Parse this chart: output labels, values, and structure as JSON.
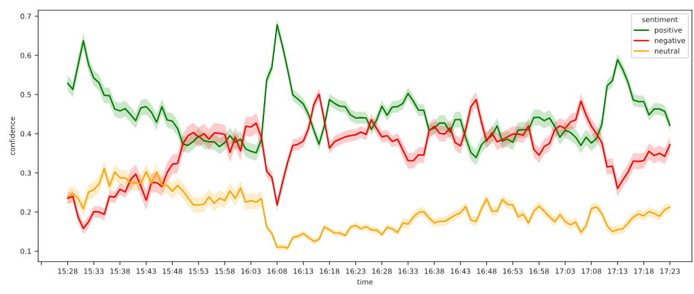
{
  "chart_data": {
    "type": "line",
    "xlabel": "time",
    "ylabel": "confidence",
    "legend_title": "sentiment",
    "legend": "top right",
    "grid": false,
    "xlim": [
      15.373,
      17.4533
    ],
    "ylim": [
      0.0732,
      0.715
    ],
    "xticks": [
      {
        "value": 15.3833,
        "label": null
      },
      {
        "value": 15.4667,
        "label": "15:28"
      },
      {
        "value": 15.55,
        "label": "15:33"
      },
      {
        "value": 15.6333,
        "label": "15:38"
      },
      {
        "value": 15.7167,
        "label": "15:43"
      },
      {
        "value": 15.8,
        "label": "15:48"
      },
      {
        "value": 15.8833,
        "label": "15:53"
      },
      {
        "value": 15.9667,
        "label": "15:58"
      },
      {
        "value": 16.05,
        "label": "16:03"
      },
      {
        "value": 16.1333,
        "label": "16:08"
      },
      {
        "value": 16.2167,
        "label": "16:13"
      },
      {
        "value": 16.3,
        "label": "16:18"
      },
      {
        "value": 16.3833,
        "label": "16:23"
      },
      {
        "value": 16.4667,
        "label": "16:28"
      },
      {
        "value": 16.55,
        "label": "16:33"
      },
      {
        "value": 16.6333,
        "label": "16:38"
      },
      {
        "value": 16.7167,
        "label": "16:43"
      },
      {
        "value": 16.8,
        "label": "16:48"
      },
      {
        "value": 16.8833,
        "label": "16:53"
      },
      {
        "value": 16.9667,
        "label": "16:58"
      },
      {
        "value": 17.05,
        "label": "17:03"
      },
      {
        "value": 17.1333,
        "label": "17:08"
      },
      {
        "value": 17.2167,
        "label": "17:13"
      },
      {
        "value": 17.3,
        "label": "17:18"
      },
      {
        "value": 17.3833,
        "label": "17:23"
      }
    ],
    "yticks": [
      0.1,
      0.2,
      0.3,
      0.4,
      0.5,
      0.6,
      0.7
    ],
    "x": [
      15.4667,
      15.4833,
      15.5,
      15.5167,
      15.5333,
      15.55,
      15.5667,
      15.5833,
      15.6,
      15.6167,
      15.6333,
      15.65,
      15.6667,
      15.6833,
      15.7,
      15.7167,
      15.7333,
      15.75,
      15.7667,
      15.7833,
      15.8,
      15.8167,
      15.8333,
      15.85,
      15.8667,
      15.8833,
      15.9,
      15.9167,
      15.9333,
      15.95,
      15.9667,
      15.9833,
      16.0,
      16.0167,
      16.0333,
      16.05,
      16.0667,
      16.0833,
      16.1,
      16.1167,
      16.1333,
      16.15,
      16.1667,
      16.1833,
      16.2,
      16.2167,
      16.2333,
      16.25,
      16.2667,
      16.2833,
      16.3,
      16.3167,
      16.3333,
      16.35,
      16.3667,
      16.3833,
      16.4,
      16.4167,
      16.4333,
      16.45,
      16.4667,
      16.4833,
      16.5,
      16.5167,
      16.5333,
      16.55,
      16.5667,
      16.5833,
      16.6,
      16.6167,
      16.6333,
      16.65,
      16.6667,
      16.6833,
      16.7,
      16.7167,
      16.7333,
      16.75,
      16.7667,
      16.7833,
      16.8,
      16.8167,
      16.8333,
      16.85,
      16.8667,
      16.8833,
      16.9,
      16.9167,
      16.9333,
      16.95,
      16.9667,
      16.9833,
      17.0,
      17.0167,
      17.0333,
      17.05,
      17.0667,
      17.0833,
      17.1,
      17.1167,
      17.1333,
      17.15,
      17.1667,
      17.1833,
      17.2,
      17.2167,
      17.2333,
      17.25,
      17.2667,
      17.2833,
      17.3,
      17.3167,
      17.3333,
      17.35,
      17.3667,
      17.3833
    ],
    "series": [
      {
        "name": "positive",
        "color": "#008000",
        "values": [
          0.529,
          0.513,
          0.575,
          0.637,
          0.577,
          0.542,
          0.53,
          0.498,
          0.497,
          0.463,
          0.458,
          0.464,
          0.449,
          0.433,
          0.466,
          0.469,
          0.455,
          0.429,
          0.469,
          0.435,
          0.432,
          0.413,
          0.374,
          0.37,
          0.38,
          0.394,
          0.382,
          0.379,
          0.379,
          0.367,
          0.377,
          0.395,
          0.378,
          0.386,
          0.361,
          0.355,
          0.351,
          0.385,
          0.537,
          0.569,
          0.678,
          0.625,
          0.564,
          0.499,
          0.488,
          0.476,
          0.449,
          0.409,
          0.373,
          0.419,
          0.487,
          0.477,
          0.47,
          0.469,
          0.448,
          0.44,
          0.441,
          0.44,
          0.411,
          0.435,
          0.47,
          0.447,
          0.468,
          0.469,
          0.477,
          0.503,
          0.483,
          0.46,
          0.46,
          0.409,
          0.414,
          0.427,
          0.427,
          0.404,
          0.436,
          0.436,
          0.39,
          0.352,
          0.339,
          0.371,
          0.385,
          0.395,
          0.42,
          0.381,
          0.386,
          0.378,
          0.409,
          0.41,
          0.41,
          0.441,
          0.442,
          0.433,
          0.44,
          0.419,
          0.391,
          0.409,
          0.403,
          0.391,
          0.37,
          0.391,
          0.376,
          0.388,
          0.424,
          0.522,
          0.535,
          0.589,
          0.564,
          0.531,
          0.486,
          0.482,
          0.482,
          0.448,
          0.463,
          0.463,
          0.457,
          0.421
        ],
        "lower": [
          0.509,
          0.493,
          0.555,
          0.617,
          0.557,
          0.522,
          0.51,
          0.478,
          0.477,
          0.443,
          0.438,
          0.444,
          0.429,
          0.413,
          0.446,
          0.449,
          0.435,
          0.409,
          0.449,
          0.415,
          0.412,
          0.393,
          0.354,
          0.35,
          0.36,
          0.374,
          0.362,
          0.359,
          0.359,
          0.347,
          0.357,
          0.375,
          0.358,
          0.366,
          0.341,
          0.335,
          0.331,
          0.365,
          0.522,
          0.554,
          0.663,
          0.61,
          0.549,
          0.484,
          0.473,
          0.461,
          0.434,
          0.394,
          0.358,
          0.404,
          0.472,
          0.462,
          0.455,
          0.454,
          0.433,
          0.425,
          0.426,
          0.425,
          0.396,
          0.42,
          0.455,
          0.432,
          0.453,
          0.454,
          0.462,
          0.488,
          0.468,
          0.445,
          0.445,
          0.394,
          0.399,
          0.407,
          0.407,
          0.384,
          0.416,
          0.416,
          0.37,
          0.332,
          0.319,
          0.351,
          0.365,
          0.375,
          0.4,
          0.361,
          0.366,
          0.358,
          0.389,
          0.39,
          0.39,
          0.421,
          0.422,
          0.413,
          0.42,
          0.399,
          0.371,
          0.389,
          0.383,
          0.371,
          0.35,
          0.371,
          0.356,
          0.368,
          0.404,
          0.507,
          0.52,
          0.574,
          0.549,
          0.516,
          0.471,
          0.467,
          0.467,
          0.433,
          0.448,
          0.448,
          0.442,
          0.406
        ],
        "upper": [
          0.549,
          0.533,
          0.595,
          0.657,
          0.597,
          0.562,
          0.55,
          0.518,
          0.517,
          0.483,
          0.478,
          0.484,
          0.469,
          0.453,
          0.486,
          0.489,
          0.475,
          0.449,
          0.489,
          0.455,
          0.452,
          0.433,
          0.394,
          0.39,
          0.4,
          0.414,
          0.402,
          0.399,
          0.399,
          0.387,
          0.397,
          0.415,
          0.398,
          0.406,
          0.381,
          0.375,
          0.371,
          0.405,
          0.552,
          0.584,
          0.693,
          0.64,
          0.579,
          0.514,
          0.503,
          0.491,
          0.464,
          0.424,
          0.388,
          0.434,
          0.502,
          0.492,
          0.485,
          0.484,
          0.463,
          0.455,
          0.456,
          0.455,
          0.426,
          0.45,
          0.485,
          0.462,
          0.483,
          0.484,
          0.492,
          0.518,
          0.498,
          0.475,
          0.475,
          0.424,
          0.429,
          0.447,
          0.447,
          0.424,
          0.456,
          0.456,
          0.41,
          0.372,
          0.359,
          0.391,
          0.405,
          0.415,
          0.44,
          0.401,
          0.406,
          0.398,
          0.429,
          0.43,
          0.43,
          0.461,
          0.462,
          0.453,
          0.46,
          0.439,
          0.411,
          0.429,
          0.423,
          0.411,
          0.39,
          0.411,
          0.396,
          0.408,
          0.444,
          0.537,
          0.55,
          0.604,
          0.579,
          0.546,
          0.501,
          0.497,
          0.497,
          0.463,
          0.478,
          0.478,
          0.472,
          0.436
        ]
      },
      {
        "name": "negative",
        "color": "#ff0000",
        "values": [
          0.235,
          0.24,
          0.187,
          0.158,
          0.175,
          0.201,
          0.2,
          0.194,
          0.24,
          0.238,
          0.258,
          0.251,
          0.282,
          0.297,
          0.265,
          0.23,
          0.275,
          0.275,
          0.265,
          0.301,
          0.322,
          0.324,
          0.374,
          0.395,
          0.403,
          0.391,
          0.4,
          0.386,
          0.402,
          0.401,
          0.398,
          0.352,
          0.391,
          0.356,
          0.419,
          0.417,
          0.427,
          0.39,
          0.304,
          0.288,
          0.218,
          0.274,
          0.327,
          0.37,
          0.373,
          0.381,
          0.413,
          0.474,
          0.501,
          0.435,
          0.363,
          0.38,
          0.386,
          0.392,
          0.395,
          0.397,
          0.404,
          0.398,
          0.436,
          0.413,
          0.392,
          0.395,
          0.38,
          0.386,
          0.358,
          0.331,
          0.331,
          0.346,
          0.345,
          0.407,
          0.419,
          0.401,
          0.399,
          0.415,
          0.377,
          0.369,
          0.41,
          0.469,
          0.487,
          0.43,
          0.381,
          0.402,
          0.379,
          0.385,
          0.392,
          0.399,
          0.399,
          0.396,
          0.42,
          0.36,
          0.345,
          0.367,
          0.375,
          0.41,
          0.42,
          0.413,
          0.43,
          0.435,
          0.483,
          0.447,
          0.419,
          0.399,
          0.377,
          0.315,
          0.317,
          0.26,
          0.282,
          0.302,
          0.33,
          0.329,
          0.331,
          0.355,
          0.344,
          0.35,
          0.342,
          0.372
        ],
        "lower": [
          0.22,
          0.225,
          0.172,
          0.143,
          0.16,
          0.186,
          0.185,
          0.179,
          0.225,
          0.223,
          0.243,
          0.236,
          0.257,
          0.272,
          0.24,
          0.205,
          0.25,
          0.25,
          0.24,
          0.276,
          0.297,
          0.299,
          0.349,
          0.37,
          0.378,
          0.366,
          0.375,
          0.361,
          0.377,
          0.376,
          0.373,
          0.327,
          0.366,
          0.331,
          0.394,
          0.392,
          0.402,
          0.365,
          0.289,
          0.273,
          0.203,
          0.259,
          0.312,
          0.355,
          0.358,
          0.366,
          0.398,
          0.459,
          0.486,
          0.42,
          0.348,
          0.365,
          0.371,
          0.377,
          0.38,
          0.382,
          0.389,
          0.383,
          0.421,
          0.398,
          0.377,
          0.38,
          0.365,
          0.371,
          0.338,
          0.311,
          0.311,
          0.326,
          0.325,
          0.387,
          0.399,
          0.381,
          0.379,
          0.395,
          0.357,
          0.349,
          0.39,
          0.449,
          0.467,
          0.41,
          0.361,
          0.382,
          0.359,
          0.365,
          0.372,
          0.379,
          0.379,
          0.376,
          0.4,
          0.34,
          0.325,
          0.347,
          0.355,
          0.39,
          0.4,
          0.393,
          0.41,
          0.415,
          0.463,
          0.427,
          0.399,
          0.379,
          0.357,
          0.295,
          0.297,
          0.24,
          0.262,
          0.282,
          0.31,
          0.309,
          0.311,
          0.335,
          0.324,
          0.33,
          0.322,
          0.352
        ],
        "upper": [
          0.25,
          0.255,
          0.202,
          0.173,
          0.19,
          0.216,
          0.215,
          0.209,
          0.255,
          0.253,
          0.273,
          0.266,
          0.307,
          0.322,
          0.29,
          0.255,
          0.3,
          0.3,
          0.29,
          0.326,
          0.347,
          0.349,
          0.399,
          0.42,
          0.428,
          0.416,
          0.425,
          0.411,
          0.427,
          0.426,
          0.423,
          0.377,
          0.416,
          0.381,
          0.444,
          0.442,
          0.452,
          0.415,
          0.319,
          0.303,
          0.233,
          0.289,
          0.342,
          0.385,
          0.388,
          0.396,
          0.428,
          0.489,
          0.516,
          0.45,
          0.378,
          0.395,
          0.401,
          0.407,
          0.41,
          0.412,
          0.419,
          0.413,
          0.451,
          0.428,
          0.407,
          0.41,
          0.395,
          0.401,
          0.378,
          0.351,
          0.351,
          0.366,
          0.365,
          0.427,
          0.439,
          0.421,
          0.419,
          0.435,
          0.397,
          0.389,
          0.43,
          0.489,
          0.507,
          0.45,
          0.401,
          0.422,
          0.399,
          0.405,
          0.412,
          0.419,
          0.419,
          0.416,
          0.44,
          0.38,
          0.365,
          0.387,
          0.395,
          0.43,
          0.44,
          0.433,
          0.45,
          0.455,
          0.503,
          0.467,
          0.439,
          0.419,
          0.397,
          0.335,
          0.337,
          0.28,
          0.302,
          0.322,
          0.35,
          0.349,
          0.351,
          0.375,
          0.364,
          0.37,
          0.362,
          0.392
        ]
      },
      {
        "name": "neutral",
        "color": "#ffa500",
        "values": [
          0.239,
          0.247,
          0.235,
          0.208,
          0.251,
          0.257,
          0.271,
          0.311,
          0.266,
          0.302,
          0.287,
          0.287,
          0.274,
          0.274,
          0.274,
          0.303,
          0.274,
          0.302,
          0.269,
          0.268,
          0.253,
          0.268,
          0.254,
          0.236,
          0.218,
          0.218,
          0.22,
          0.239,
          0.222,
          0.235,
          0.229,
          0.254,
          0.235,
          0.261,
          0.225,
          0.229,
          0.225,
          0.234,
          0.162,
          0.145,
          0.11,
          0.111,
          0.108,
          0.135,
          0.138,
          0.145,
          0.135,
          0.125,
          0.13,
          0.162,
          0.154,
          0.146,
          0.146,
          0.14,
          0.161,
          0.166,
          0.157,
          0.163,
          0.154,
          0.154,
          0.142,
          0.161,
          0.157,
          0.148,
          0.172,
          0.169,
          0.187,
          0.199,
          0.201,
          0.185,
          0.172,
          0.176,
          0.176,
          0.184,
          0.192,
          0.198,
          0.214,
          0.179,
          0.176,
          0.208,
          0.234,
          0.202,
          0.202,
          0.232,
          0.219,
          0.218,
          0.188,
          0.194,
          0.172,
          0.202,
          0.215,
          0.202,
          0.188,
          0.175,
          0.193,
          0.176,
          0.167,
          0.174,
          0.148,
          0.165,
          0.209,
          0.213,
          0.196,
          0.165,
          0.15,
          0.155,
          0.157,
          0.172,
          0.187,
          0.195,
          0.19,
          0.201,
          0.196,
          0.189,
          0.206,
          0.213
        ],
        "lower": [
          0.219,
          0.227,
          0.215,
          0.188,
          0.231,
          0.237,
          0.251,
          0.291,
          0.246,
          0.282,
          0.267,
          0.267,
          0.254,
          0.254,
          0.254,
          0.283,
          0.254,
          0.282,
          0.249,
          0.248,
          0.233,
          0.248,
          0.234,
          0.216,
          0.198,
          0.198,
          0.2,
          0.219,
          0.202,
          0.215,
          0.209,
          0.234,
          0.215,
          0.241,
          0.205,
          0.209,
          0.205,
          0.214,
          0.154,
          0.137,
          0.102,
          0.103,
          0.1,
          0.127,
          0.13,
          0.137,
          0.127,
          0.117,
          0.122,
          0.154,
          0.146,
          0.138,
          0.138,
          0.132,
          0.153,
          0.158,
          0.149,
          0.155,
          0.146,
          0.146,
          0.134,
          0.153,
          0.149,
          0.14,
          0.16,
          0.157,
          0.175,
          0.187,
          0.189,
          0.173,
          0.16,
          0.164,
          0.164,
          0.172,
          0.18,
          0.186,
          0.202,
          0.167,
          0.164,
          0.196,
          0.222,
          0.19,
          0.19,
          0.22,
          0.207,
          0.206,
          0.176,
          0.182,
          0.16,
          0.19,
          0.203,
          0.19,
          0.176,
          0.163,
          0.181,
          0.164,
          0.155,
          0.162,
          0.136,
          0.153,
          0.197,
          0.201,
          0.184,
          0.153,
          0.138,
          0.143,
          0.145,
          0.16,
          0.175,
          0.183,
          0.178,
          0.189,
          0.184,
          0.177,
          0.194,
          0.201
        ],
        "upper": [
          0.259,
          0.267,
          0.255,
          0.228,
          0.271,
          0.277,
          0.291,
          0.331,
          0.286,
          0.322,
          0.307,
          0.307,
          0.294,
          0.294,
          0.294,
          0.323,
          0.294,
          0.322,
          0.289,
          0.288,
          0.273,
          0.288,
          0.274,
          0.256,
          0.238,
          0.238,
          0.24,
          0.259,
          0.242,
          0.255,
          0.249,
          0.274,
          0.255,
          0.281,
          0.245,
          0.249,
          0.245,
          0.254,
          0.17,
          0.153,
          0.118,
          0.119,
          0.116,
          0.143,
          0.146,
          0.153,
          0.143,
          0.133,
          0.138,
          0.17,
          0.162,
          0.154,
          0.154,
          0.148,
          0.169,
          0.174,
          0.165,
          0.171,
          0.162,
          0.162,
          0.15,
          0.169,
          0.165,
          0.156,
          0.184,
          0.181,
          0.199,
          0.211,
          0.213,
          0.197,
          0.184,
          0.188,
          0.188,
          0.196,
          0.204,
          0.21,
          0.226,
          0.191,
          0.188,
          0.22,
          0.246,
          0.214,
          0.214,
          0.244,
          0.231,
          0.23,
          0.2,
          0.206,
          0.184,
          0.214,
          0.227,
          0.214,
          0.2,
          0.187,
          0.205,
          0.188,
          0.179,
          0.186,
          0.16,
          0.177,
          0.221,
          0.225,
          0.208,
          0.177,
          0.162,
          0.167,
          0.169,
          0.184,
          0.199,
          0.207,
          0.202,
          0.213,
          0.208,
          0.201,
          0.218,
          0.225
        ]
      }
    ]
  }
}
